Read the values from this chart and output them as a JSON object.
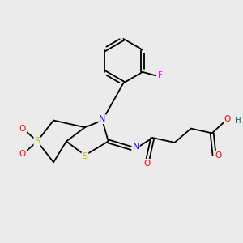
{
  "bg_color": "#ebebeb",
  "atom_colors": {
    "S": "#c8b400",
    "N": "#0000ff",
    "O": "#ff0000",
    "F": "#ff00ff",
    "C": "#000000",
    "H": "#007070"
  },
  "bond_color": "#000000"
}
